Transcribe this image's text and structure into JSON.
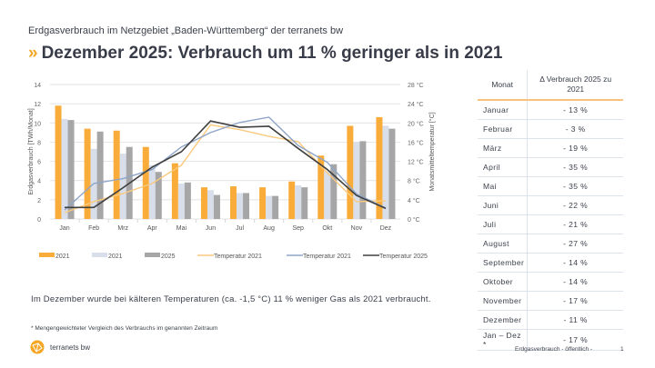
{
  "header": {
    "subtitle": "Erdgasverbrauch im Netzgebiet „Baden-Württemberg“ der terranets bw",
    "title": "Dezember 2025: Verbrauch um 11 % geringer als in 2021",
    "accent": "#f5a623"
  },
  "chart_data": {
    "type": "bar",
    "categories": [
      "Jan",
      "Feb",
      "Mrz",
      "Apr",
      "Mai",
      "Jun",
      "Jul",
      "Aug",
      "Sep",
      "Okt",
      "Nov",
      "Dez"
    ],
    "ylabel": "Erdgasverbrauch [TWh/Monat]",
    "y2label": "Monatsmitteltemperatur [°C]",
    "ylim": [
      0,
      14
    ],
    "y2lim": [
      0,
      28
    ],
    "yticks": [
      "0",
      "2",
      "4",
      "6",
      "8",
      "10",
      "12",
      "14"
    ],
    "y2ticks": [
      "0 °C",
      "4 °C",
      "8 °C",
      "12 °C",
      "16 °C",
      "20 °C",
      "24 °C",
      "28 °C"
    ],
    "grid": true,
    "legend": "bottom",
    "series": [
      {
        "name": "2021",
        "kind": "bar",
        "color": "#f9ac3a",
        "values": [
          11.8,
          9.4,
          9.2,
          7.5,
          5.8,
          3.3,
          3.4,
          3.3,
          3.9,
          6.6,
          9.7,
          10.6
        ]
      },
      {
        "name": "2021",
        "kind": "bar",
        "color": "#d8dfea",
        "values": [
          10.4,
          7.3,
          6.8,
          5.6,
          3.7,
          3.0,
          2.7,
          2.4,
          3.5,
          5.0,
          8.0,
          9.7
        ]
      },
      {
        "name": "2025",
        "kind": "bar",
        "color": "#a6a6a6",
        "values": [
          10.3,
          9.1,
          7.5,
          4.9,
          3.8,
          2.5,
          2.7,
          2.4,
          3.3,
          5.7,
          8.1,
          9.4
        ]
      },
      {
        "name": "Temperatur 2021",
        "kind": "line",
        "color": "#fbc97e",
        "values": [
          1.3,
          3.6,
          5.3,
          7.4,
          11.2,
          19.6,
          18.6,
          17.2,
          16.1,
          9.6,
          3.6,
          3.8
        ]
      },
      {
        "name": "Temperatur 2021",
        "kind": "line",
        "color": "#8ea5c8",
        "values": [
          1.9,
          7.4,
          8.4,
          10.3,
          15.0,
          18.0,
          20.1,
          21.2,
          15.3,
          11.8,
          5.2,
          2.3
        ]
      },
      {
        "name": "Temperatur 2025",
        "kind": "line",
        "color": "#404040",
        "values": [
          2.4,
          2.4,
          6.5,
          10.8,
          14.0,
          20.4,
          19.1,
          19.3,
          14.7,
          10.3,
          4.9,
          2.2
        ]
      }
    ]
  },
  "note": "Im Dezember wurde bei kälteren Temperaturen (ca. -1,5 °C) 11 % weniger Gas als 2021 verbraucht.",
  "footnote": "* Mengengewichteter Vergleich des Verbrauchs im genannten Zeitraum",
  "table": {
    "headers": [
      "Monat",
      "Δ Verbrauch 2025 zu 2021"
    ],
    "rows": [
      [
        "Januar",
        "- 13 %"
      ],
      [
        "Februar",
        "- 3 %"
      ],
      [
        "März",
        "- 19 %"
      ],
      [
        "April",
        "- 35 %"
      ],
      [
        "Mai",
        "- 35 %"
      ],
      [
        "Juni",
        "- 22 %"
      ],
      [
        "Juli",
        "- 21 %"
      ],
      [
        "August",
        "- 27 %"
      ],
      [
        "September",
        "- 14 %"
      ],
      [
        "Oktober",
        "- 14 %"
      ],
      [
        "November",
        "- 17 %"
      ],
      [
        "Dezember",
        "- 11 %"
      ],
      [
        "Jan – Dez *",
        "- 17 %"
      ]
    ]
  },
  "footer": {
    "logo": "terranets bw",
    "label": "Erdgasverbrauch - öffentlich -",
    "page": "1"
  }
}
